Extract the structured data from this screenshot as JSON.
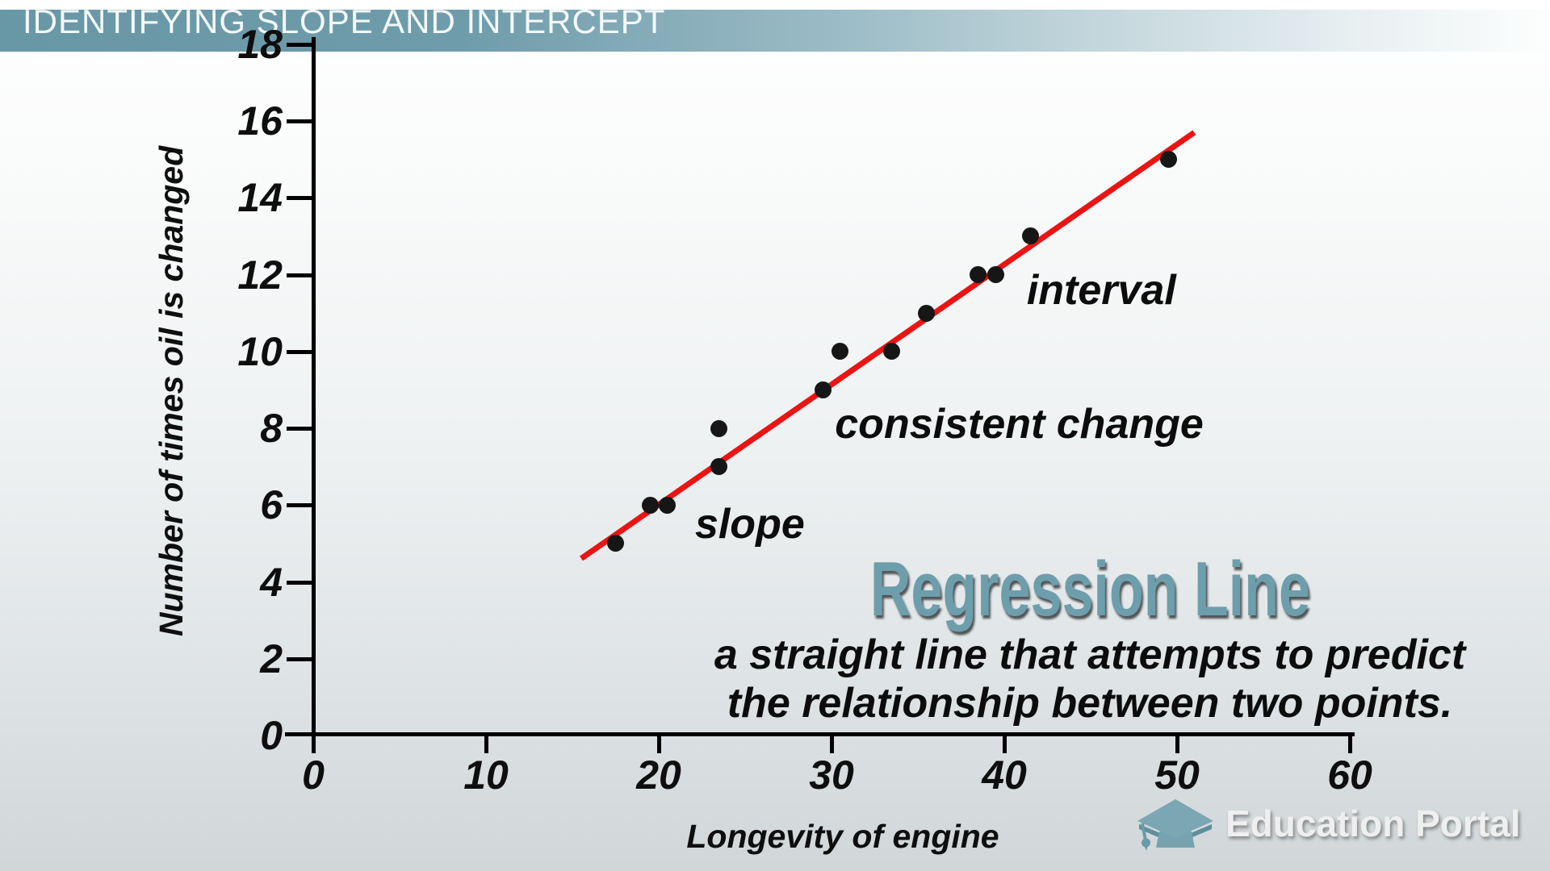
{
  "banner": {
    "title": "IDENTIFYING SLOPE AND INTERCEPT"
  },
  "chart_data": {
    "type": "scatter",
    "title": "",
    "x_label": "Longevity of engine",
    "y_label": "Number of times oil is changed",
    "x_ticks": [
      0,
      10,
      20,
      30,
      40,
      50,
      60
    ],
    "y_ticks": [
      0,
      2,
      4,
      6,
      8,
      10,
      12,
      14,
      16,
      18
    ],
    "xlim": [
      0,
      62
    ],
    "ylim": [
      0,
      18
    ],
    "grid": false,
    "points": [
      [
        17.5,
        5
      ],
      [
        19.5,
        6
      ],
      [
        20.5,
        6
      ],
      [
        23.5,
        7
      ],
      [
        23.5,
        8
      ],
      [
        29.5,
        9
      ],
      [
        30.5,
        10
      ],
      [
        33.5,
        10
      ],
      [
        35.5,
        11
      ],
      [
        38.5,
        12
      ],
      [
        39.5,
        12
      ],
      [
        41.5,
        13
      ],
      [
        49.5,
        15
      ]
    ],
    "point_color": "#161616",
    "regression_line": {
      "x1": 15.5,
      "y1": 4.6,
      "x2": 51.0,
      "y2": 15.7,
      "color": "#ec1313"
    },
    "annotations": [
      {
        "text": "slope",
        "x": 22.1,
        "y": 5.5
      },
      {
        "text": "consistent change",
        "x": 30.2,
        "y": 8.1
      },
      {
        "text": "interval",
        "x": 41.3,
        "y": 11.6
      }
    ]
  },
  "callout": {
    "title": "Regression Line",
    "title_color": "#6d9eab",
    "description_line1": "a straight line that attempts to predict",
    "description_line2": "the relationship between two points."
  },
  "brand": {
    "name": "Education Portal",
    "icon": "graduation-cap-icon",
    "icon_color": "#7ba6b4"
  },
  "colors": {
    "banner_teal": "#6897a5",
    "accent_red": "#ec1313",
    "heading_blue": "#6d9eab"
  }
}
